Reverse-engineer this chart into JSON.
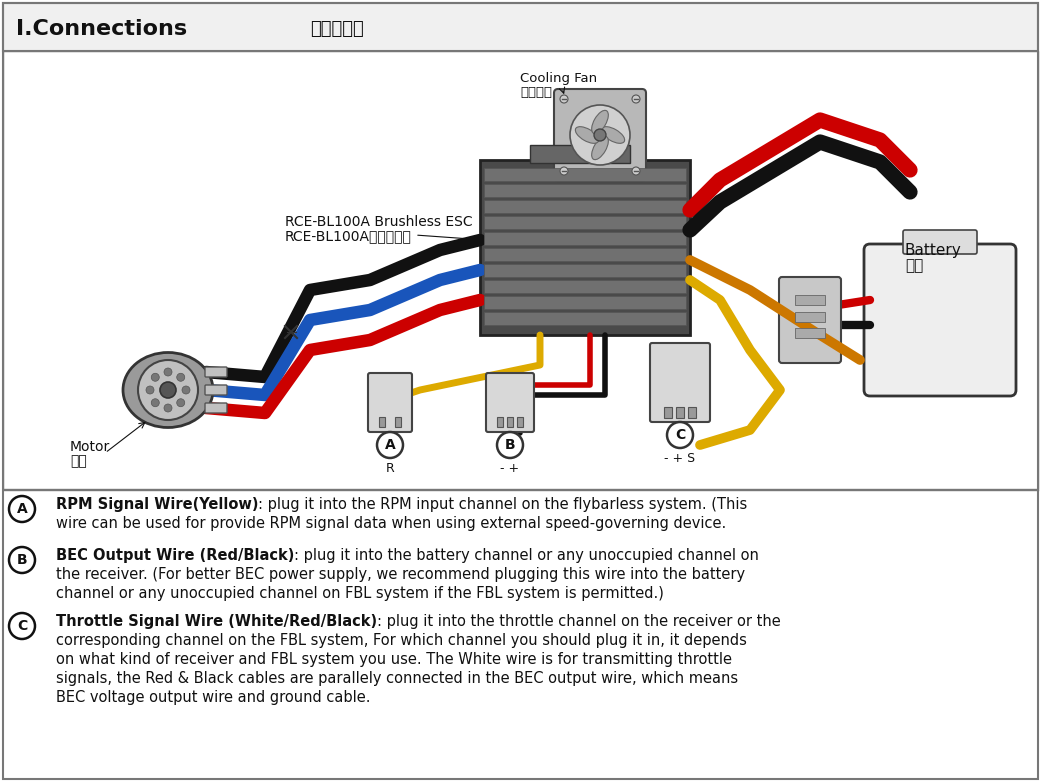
{
  "title_left": "I.Connections",
  "title_right": "接線示意圖",
  "bg_color": "#ffffff",
  "header_bg": "#f0f0f0",
  "border_color": "#555555",
  "cooling_fan_label_en": "Cooling Fan",
  "cooling_fan_label_zh": "散熱風扇",
  "esc_label_en": "RCE-BL100A Brushless ESC",
  "esc_label_zh": "RCE-BL100A無刷調速器",
  "motor_label_en": "Motor",
  "motor_label_zh": "馬達",
  "battery_label_en": "Battery",
  "battery_label_zh": "電池",
  "wire_black": "#111111",
  "wire_blue": "#1955bb",
  "wire_red": "#cc0000",
  "wire_yellow": "#ddaa00",
  "wire_orange": "#cc7700",
  "text_A_bold": "RPM Signal Wire(Yellow)",
  "text_A_rest": ": plug it into the RPM input channel on the flybarless system. (This",
  "text_A_line2": "wire can be used for provide RPM signal data when using external speed-governing device.",
  "text_B_bold": "BEC Output Wire (Red/Black)",
  "text_B_rest": ": plug it into the battery channel or any unoccupied channel on",
  "text_B_line2": "the receiver. (For better BEC power supply, we recommend plugging this wire into the battery",
  "text_B_line3": "channel or any unoccupied channel on FBL system if the FBL system is permitted.)",
  "text_C_bold": "Throttle Signal Wire (White/Red/Black)",
  "text_C_rest": ": plug it into the throttle channel on the receiver or the",
  "text_C_line2": "corresponding channel on the FBL system, For which channel you should plug it in, it depends",
  "text_C_line3": "on what kind of receiver and FBL system you use. The White wire is for transmitting throttle",
  "text_C_line4": "signals, the Red & Black cables are parallely connected in the BEC output wire, which means",
  "text_C_line5": "BEC voltage output wire and ground cable.",
  "fig_width": 10.41,
  "fig_height": 7.82,
  "dpi": 100
}
